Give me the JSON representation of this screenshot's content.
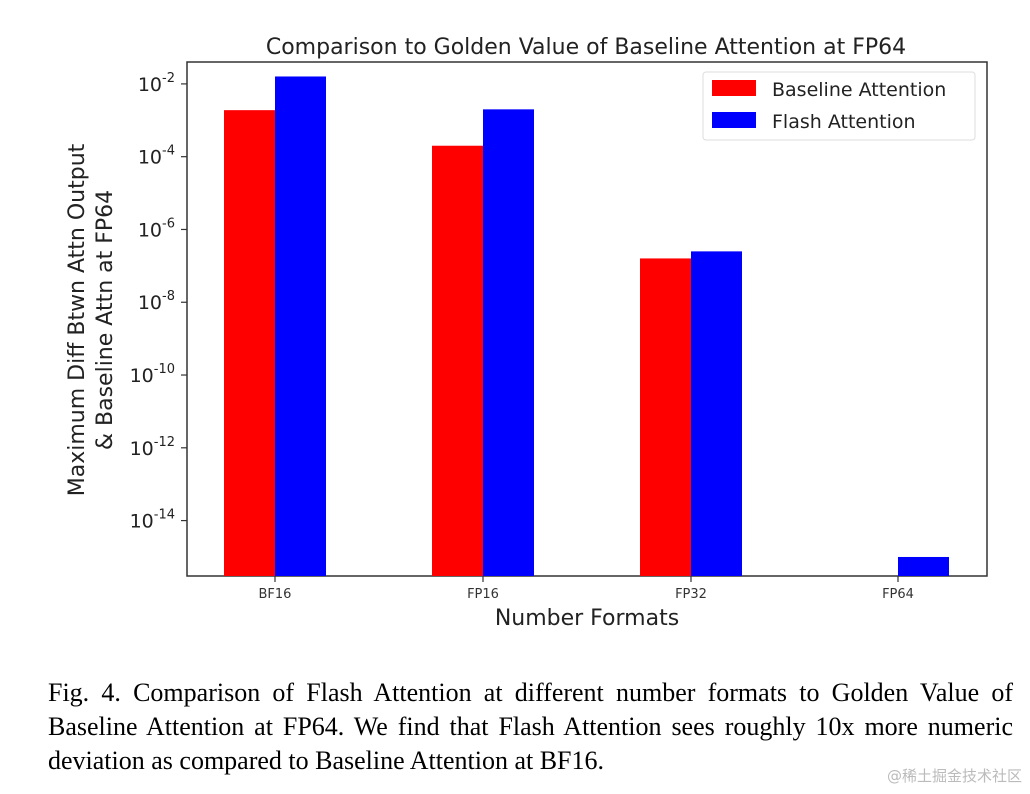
{
  "chart_data": {
    "type": "bar",
    "title": "Comparison to Golden Value of Baseline Attention at FP64",
    "xlabel": "Number Formats",
    "ylabel_lines": [
      "Maximum Diff Btwn Attn Output",
      "& Baseline Attn at FP64"
    ],
    "yscale": "log",
    "ylim": [
      3e-16,
      0.04
    ],
    "categories": [
      "BF16",
      "FP16",
      "FP32",
      "FP64"
    ],
    "yticks": [
      {
        "exp": "-2",
        "value": 0.01
      },
      {
        "exp": "-4",
        "value": 0.0001
      },
      {
        "exp": "-6",
        "value": 1e-06
      },
      {
        "exp": "-8",
        "value": 1e-08
      },
      {
        "exp": "-10",
        "value": 1e-10
      },
      {
        "exp": "-12",
        "value": 1e-12
      },
      {
        "exp": "-14",
        "value": 1e-14
      }
    ],
    "ytick_base": "10",
    "series": [
      {
        "name": "Baseline Attention",
        "color": "#ff0000",
        "values": [
          0.0019,
          0.0002,
          1.6e-07,
          null
        ]
      },
      {
        "name": "Flash Attention",
        "color": "#0000ff",
        "values": [
          0.016,
          0.002,
          2.5e-07,
          1e-15
        ]
      }
    ],
    "legend": "top-right",
    "grid": false
  },
  "caption": "Fig. 4.  Comparison of Flash Attention at different number formats to Golden Value of Baseline Attention at FP64. We find that Flash Attention sees roughly 10x more numeric deviation as compared to Baseline Attention at BF16.",
  "watermark": "@稀土掘金技术社区"
}
